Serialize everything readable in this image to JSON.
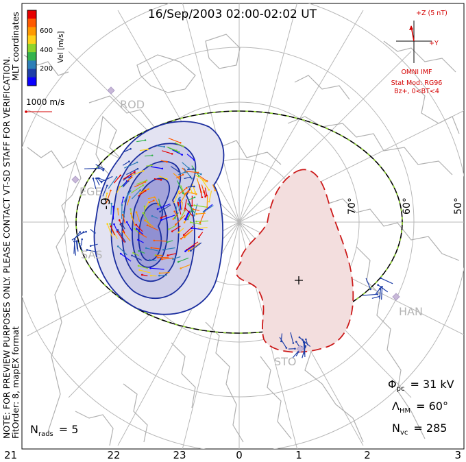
{
  "header": {
    "title": "16/Sep/2003 02:00-02:02 UT"
  },
  "side_notes": {
    "preview_note": "NOTE: FOR PREVIEW PURPOSES ONLY. PLEASE CONTACT VT-SD STAFF FOR VERIFICATION.",
    "fit_note": "FitOrder: 8, mapEX format",
    "coords_note": "MLT coordinates"
  },
  "velocity_legend": {
    "unit_label": "Vel [m/s]",
    "ticks": [
      "600",
      "400",
      "200"
    ],
    "colors": [
      "#e60000",
      "#ff5a00",
      "#ff9900",
      "#ffd11a",
      "#8ed42c",
      "#33b34d",
      "#2d7fb8",
      "#1f3fa8",
      "#0a00ff"
    ],
    "reference_vector_label": "1000 m/s"
  },
  "imf_panel": {
    "z_label": "+Z (5 nT)",
    "y_label": "+Y",
    "source_label": "OMNI IMF",
    "model_line1": "Stat Mod: RG96",
    "model_line2": "Bz+, 0<BT<4"
  },
  "latitude_labels": [
    "70°",
    "60°",
    "50°"
  ],
  "station_labels": [
    "ROD",
    "EGE",
    "SAS",
    "HAN",
    "STO"
  ],
  "contour_labels": {
    "negative_cell": "-9"
  },
  "mlt_axis": {
    "ticks": [
      "21",
      "22",
      "23",
      "0",
      "1",
      "2",
      "3"
    ]
  },
  "stats": {
    "phi_pc_symbol": "Φ",
    "phi_pc_sub": "pc",
    "phi_pc_value": "= 31 kV",
    "lambda_hm_symbol": "Λ",
    "lambda_hm_sub": "HM",
    "lambda_hm_value": "= 60°",
    "n_vc_symbol": "N",
    "n_vc_sub": "vc",
    "n_vc_value": "= 285",
    "n_rads_symbol": "N",
    "n_rads_sub": "rads",
    "n_rads_value": "= 5"
  },
  "colors": {
    "negative_cell_fill": "#e3e3f2",
    "negative_cell_line": "#1a2d9e",
    "positive_cell_fill": "#f3dede",
    "positive_cell_line": "#cc1a1a",
    "hm_boundary_dash": "#8ed42c",
    "coastline": "#b0b0b0",
    "grid": "#b0b0b0"
  }
}
